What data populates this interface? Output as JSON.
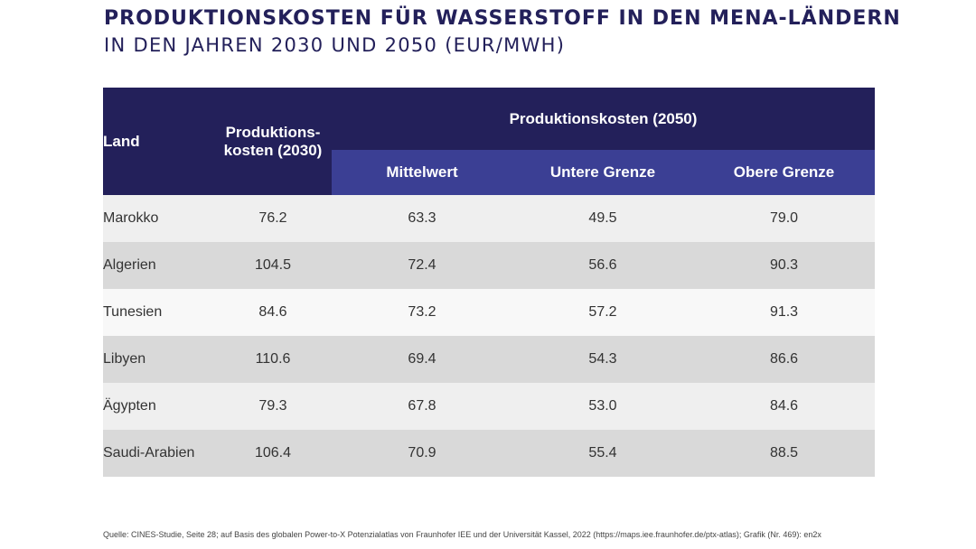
{
  "title": "PRODUKTIONSKOSTEN FÜR WASSERSTOFF IN DEN MENA-LÄNDERN",
  "subtitle": "IN DEN JAHREN 2030 UND 2050 (EUR/MWH)",
  "headers": {
    "land": "Land",
    "cost_2030_line1": "Produktions-",
    "cost_2030_line2": "kosten (2030)",
    "cost_2050": "Produktionskosten  (2050)",
    "mittelwert": "Mittelwert",
    "untere": "Untere Grenze",
    "obere": "Obere Grenze"
  },
  "colors": {
    "header_dark": "#23205a",
    "header_sub": "#3b3f94",
    "row_light": "#efefef",
    "row_dark": "#d9d9d9"
  },
  "chart_data": {
    "type": "table",
    "columns": [
      "Land",
      "Produktions-kosten (2030)",
      "Mittelwert",
      "Untere Grenze",
      "Obere Grenze"
    ],
    "rows": [
      {
        "land": "Marokko",
        "c2030": "76.2",
        "mittel": "63.3",
        "unten": "49.5",
        "oben": "79.0"
      },
      {
        "land": "Algerien",
        "c2030": "104.5",
        "mittel": "72.4",
        "unten": "56.6",
        "oben": "90.3"
      },
      {
        "land": "Tunesien",
        "c2030": "84.6",
        "mittel": "73.2",
        "unten": "57.2",
        "oben": "91.3"
      },
      {
        "land": "Libyen",
        "c2030": "110.6",
        "mittel": "69.4",
        "unten": "54.3",
        "oben": "86.6"
      },
      {
        "land": "Ägypten",
        "c2030": "79.3",
        "mittel": "67.8",
        "unten": "53.0",
        "oben": "84.6"
      },
      {
        "land": "Saudi-Arabien",
        "c2030": "106.4",
        "mittel": "70.9",
        "unten": "55.4",
        "oben": "88.5"
      }
    ]
  },
  "source": "Quelle: CINES-Studie, Seite 28; auf Basis des globalen Power-to-X Potenzialatlas von Fraunhofer IEE und der Universität Kassel, 2022 (https://maps.iee.fraunhofer.de/ptx-atlas); Grafik (Nr. 469): en2x"
}
